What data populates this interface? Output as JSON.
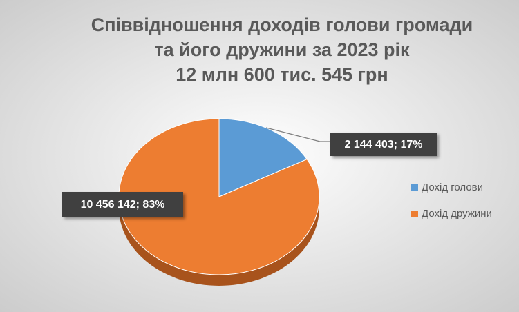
{
  "chart_data": {
    "type": "pie",
    "title": [
      "Співвідношення доходів голови громади",
      "та його дружини за 2023 рік",
      "12 млн 600 тис. 545 грн"
    ],
    "categories": [
      "Дохід голови",
      "Дохід дружини"
    ],
    "values": [
      2144403,
      10456142
    ],
    "value_labels": [
      "2 144 403; 17%",
      "10 456 142; 83%"
    ],
    "colors": [
      "#5b9bd5",
      "#ed7d31"
    ],
    "legend": "right"
  }
}
